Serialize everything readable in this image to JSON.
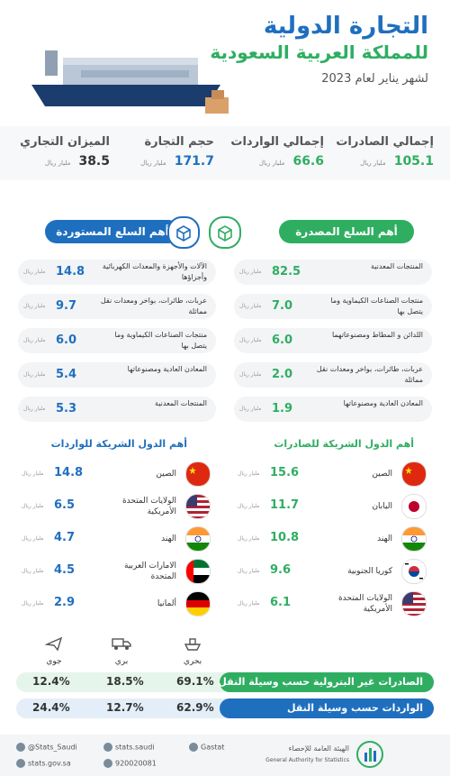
{
  "header": {
    "title_line1": "التجارة الدولية",
    "title_line2": "للمملكة العربية السعودية",
    "period": "لشهر يناير لعام 2023"
  },
  "unit": "مليار ريال",
  "totals": [
    {
      "label": "إجمالي الصادرات",
      "value": "105.1",
      "color": "#2fae62"
    },
    {
      "label": "إجمالي الواردات",
      "value": "66.6",
      "color": "#2fae62"
    },
    {
      "label": "حجم التجارة",
      "value": "171.7",
      "color": "#1f6fbf"
    },
    {
      "label": "الميزان التجاري",
      "value": "38.5",
      "color": "#333333"
    }
  ],
  "exports_goods": {
    "title": "أهم السلع المصدرة",
    "items": [
      {
        "name": "المنتجات المعدنية",
        "value": "82.5"
      },
      {
        "name": "منتجات الصناعات الكيماوية وما يتصل بها",
        "value": "7.0"
      },
      {
        "name": "اللدائن و المطاط ومصنوعاتهما",
        "value": "6.0"
      },
      {
        "name": "عربات، طائرات، بواخر ومعدات نقل مماثلة",
        "value": "2.0"
      },
      {
        "name": "المعادن العادية ومصنوعاتها",
        "value": "1.9"
      }
    ]
  },
  "imports_goods": {
    "title": "أهم السلع المستوردة",
    "items": [
      {
        "name": "الآلات والأجهزة والمعدات الكهربائية وأجزاؤها",
        "value": "14.8"
      },
      {
        "name": "عربات، طائرات، بواخر ومعدات نقل مماثلة",
        "value": "9.7"
      },
      {
        "name": "منتجات الصناعات الكيماوية وما يتصل بها",
        "value": "6.0"
      },
      {
        "name": "المعادن العادية ومصنوعاتها",
        "value": "5.4"
      },
      {
        "name": "المنتجات المعدنية",
        "value": "5.3"
      }
    ]
  },
  "exports_partners": {
    "title": "أهم الدول الشريكة للصادرات",
    "items": [
      {
        "name": "الصين",
        "value": "15.6",
        "flag": "china"
      },
      {
        "name": "اليابان",
        "value": "11.7",
        "flag": "japan"
      },
      {
        "name": "الهند",
        "value": "10.8",
        "flag": "india"
      },
      {
        "name": "كوريا الجنوبية",
        "value": "9.6",
        "flag": "korea"
      },
      {
        "name": "الولايات المتحدة الأمريكية",
        "value": "6.1",
        "flag": "usa"
      }
    ]
  },
  "imports_partners": {
    "title": "أهم الدول الشريكة للواردات",
    "items": [
      {
        "name": "الصين",
        "value": "14.8",
        "flag": "china"
      },
      {
        "name": "الولايات المتحدة الأمريكية",
        "value": "6.5",
        "flag": "usa"
      },
      {
        "name": "الهند",
        "value": "4.7",
        "flag": "india"
      },
      {
        "name": "الامارات العربية المتحدة",
        "value": "4.5",
        "flag": "uae"
      },
      {
        "name": "ألمانيا",
        "value": "2.9",
        "flag": "germany"
      }
    ]
  },
  "transport": {
    "modes": [
      {
        "label": "بحري",
        "icon": "ship-icon"
      },
      {
        "label": "بري",
        "icon": "truck-icon"
      },
      {
        "label": "جوي",
        "icon": "plane-icon"
      }
    ],
    "rows": [
      {
        "label": "الصادرات غير البترولية حسب وسيلة النقل",
        "values": [
          "69.1%",
          "18.5%",
          "12.4%"
        ],
        "color": "#2fae62"
      },
      {
        "label": "الواردات حسب وسيلة النقل",
        "values": [
          "62.9%",
          "12.7%",
          "24.4%"
        ],
        "color": "#1f6fbf"
      }
    ]
  },
  "footer": {
    "twitter": "@Stats_Saudi",
    "instagram": "stats.saudi",
    "youtube": "Gastat",
    "website": "stats.gov.sa",
    "phone": "920020081",
    "org_name": "الهيئة العامة للإحصاء",
    "org_name_en": "General Authority for Statistics"
  }
}
